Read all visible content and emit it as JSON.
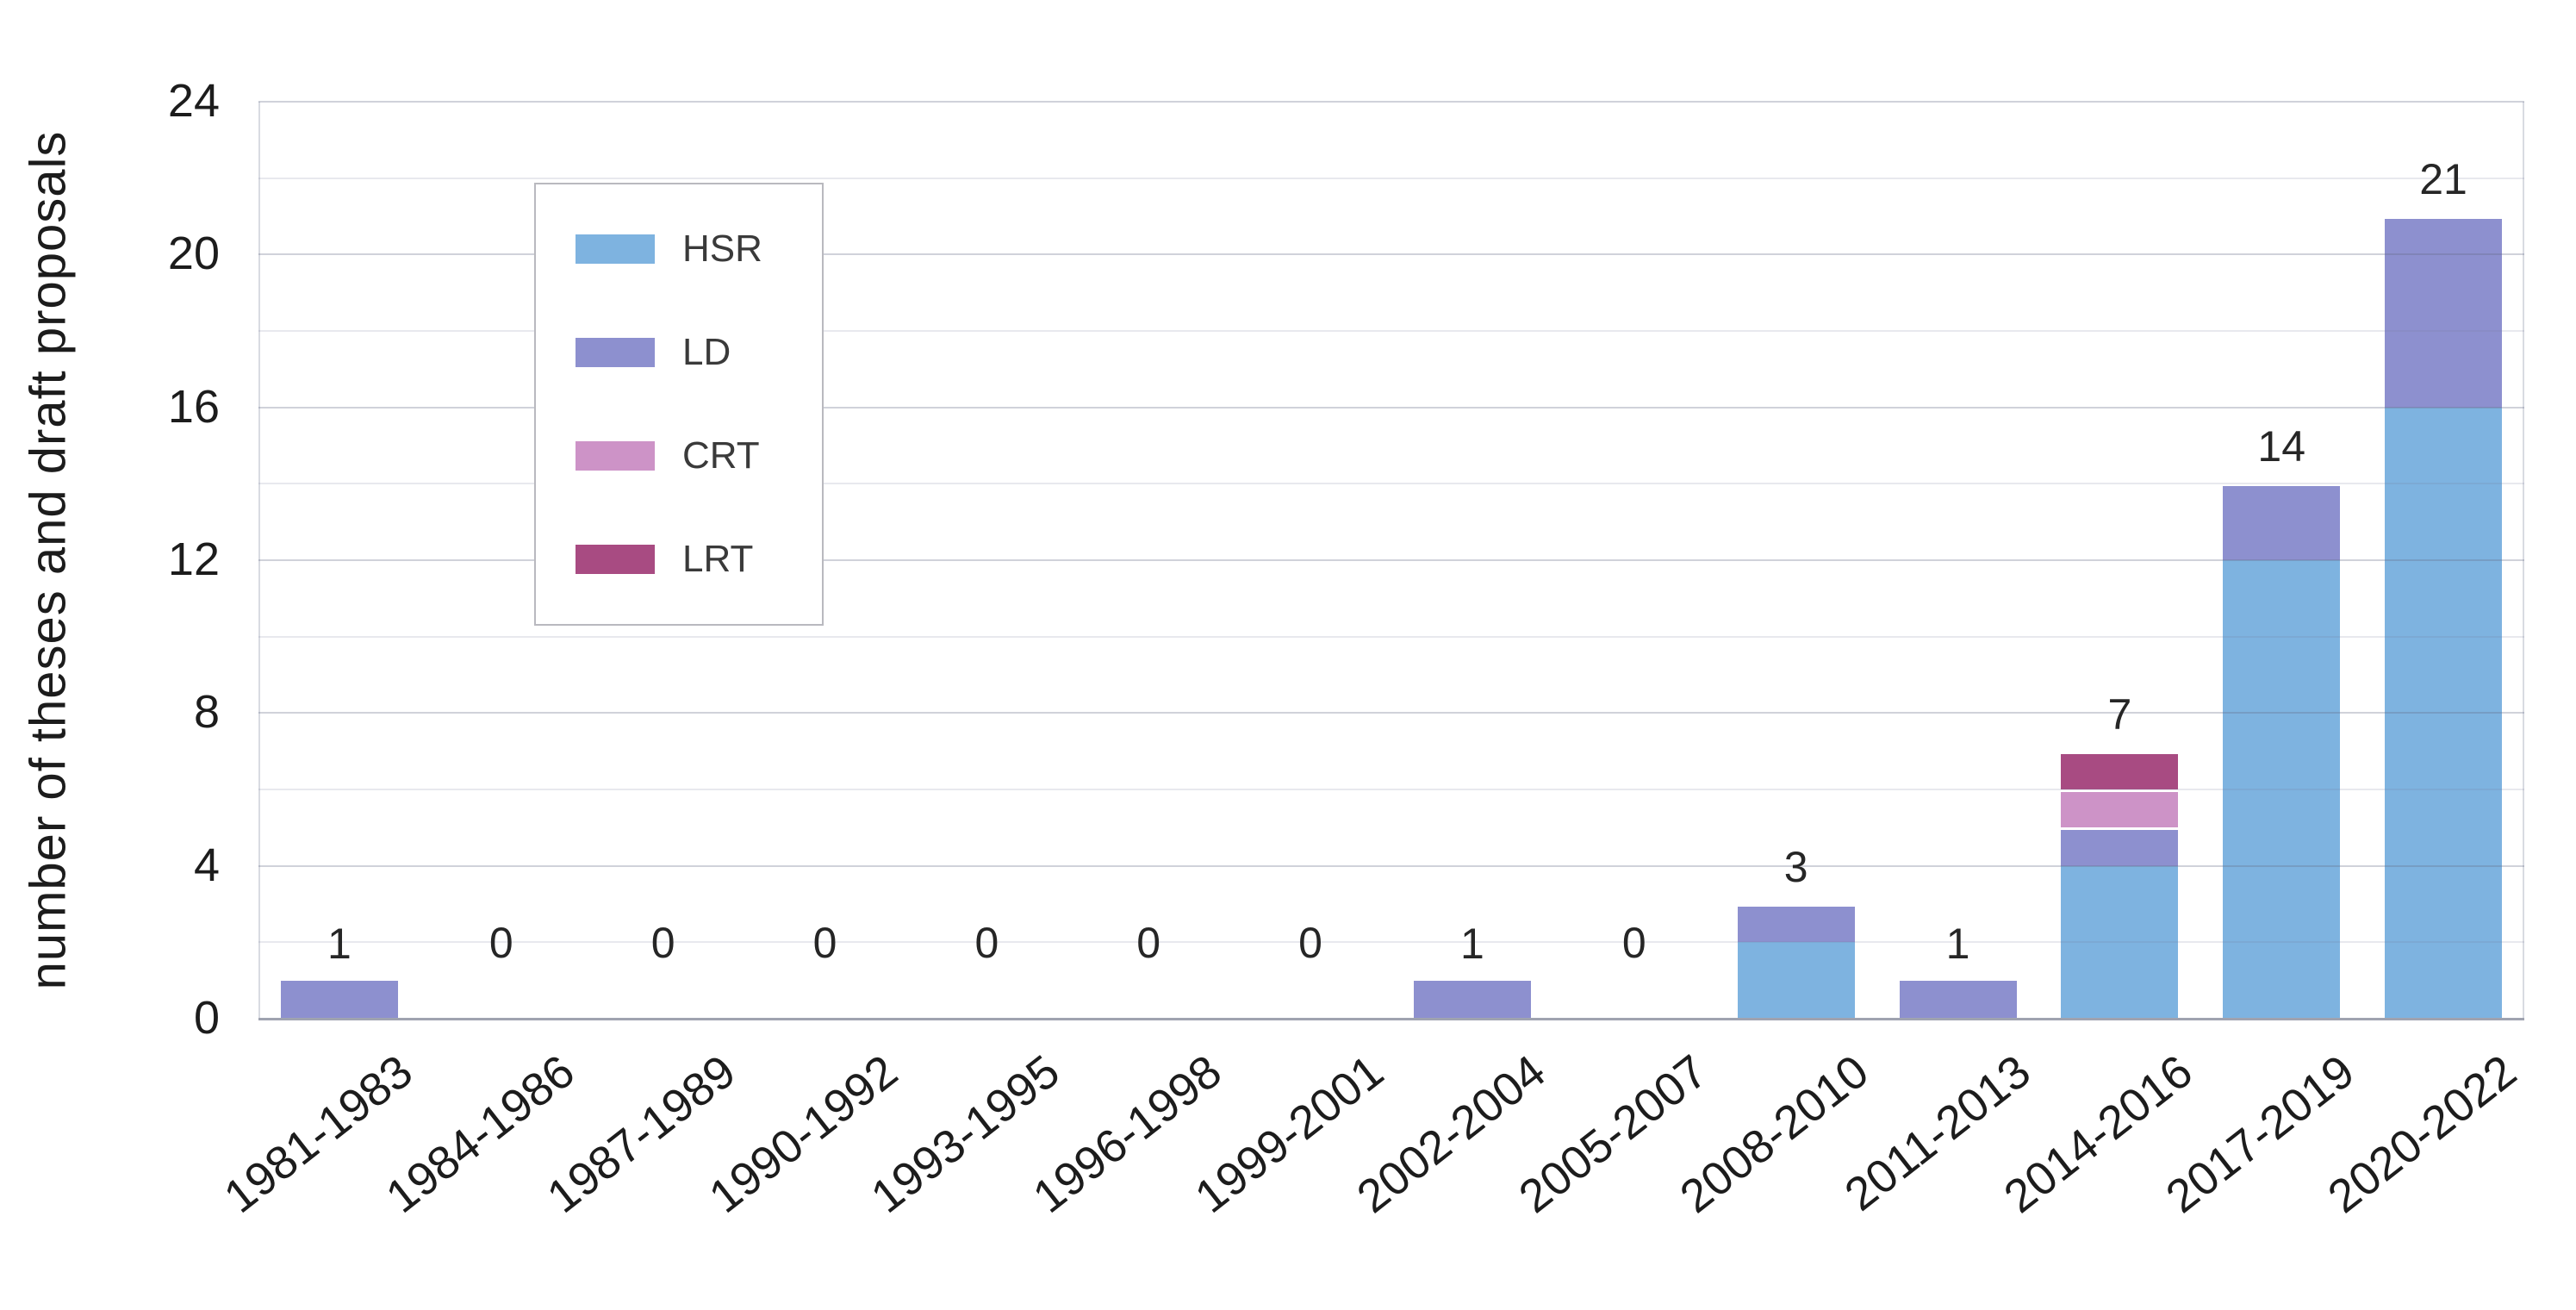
{
  "chart_data": {
    "type": "bar",
    "stacked": true,
    "title": "",
    "xlabel": "",
    "ylabel": "number of theses and draft proposals",
    "ylim": [
      0,
      24
    ],
    "yticks": [
      0,
      4,
      8,
      12,
      16,
      20,
      24
    ],
    "grid": {
      "horizontal": true,
      "interval": 2
    },
    "legend_position": "top-left-inside",
    "categories": [
      "1981-1983",
      "1984-1986",
      "1987-1989",
      "1990-1992",
      "1993-1995",
      "1996-1998",
      "1999-2001",
      "2002-2004",
      "2005-2007",
      "2008-2010",
      "2011-2013",
      "2014-2016",
      "2017-2019",
      "2020-2022"
    ],
    "series": [
      {
        "name": "HSR",
        "color": "#7eb3e0",
        "values": [
          0,
          0,
          0,
          0,
          0,
          0,
          0,
          0,
          0,
          2,
          0,
          4,
          12,
          16
        ]
      },
      {
        "name": "LD",
        "color": "#8d90cf",
        "values": [
          1,
          0,
          0,
          0,
          0,
          0,
          0,
          1,
          0,
          1,
          1,
          1,
          2,
          5
        ]
      },
      {
        "name": "CRT",
        "color": "#cd93c7",
        "values": [
          0,
          0,
          0,
          0,
          0,
          0,
          0,
          0,
          0,
          0,
          0,
          1,
          0,
          0
        ]
      },
      {
        "name": "LRT",
        "color": "#a84b82",
        "values": [
          0,
          0,
          0,
          0,
          0,
          0,
          0,
          0,
          0,
          0,
          0,
          1,
          0,
          0
        ]
      }
    ],
    "totals": [
      1,
      0,
      0,
      0,
      0,
      0,
      0,
      1,
      0,
      3,
      1,
      7,
      14,
      21
    ]
  }
}
